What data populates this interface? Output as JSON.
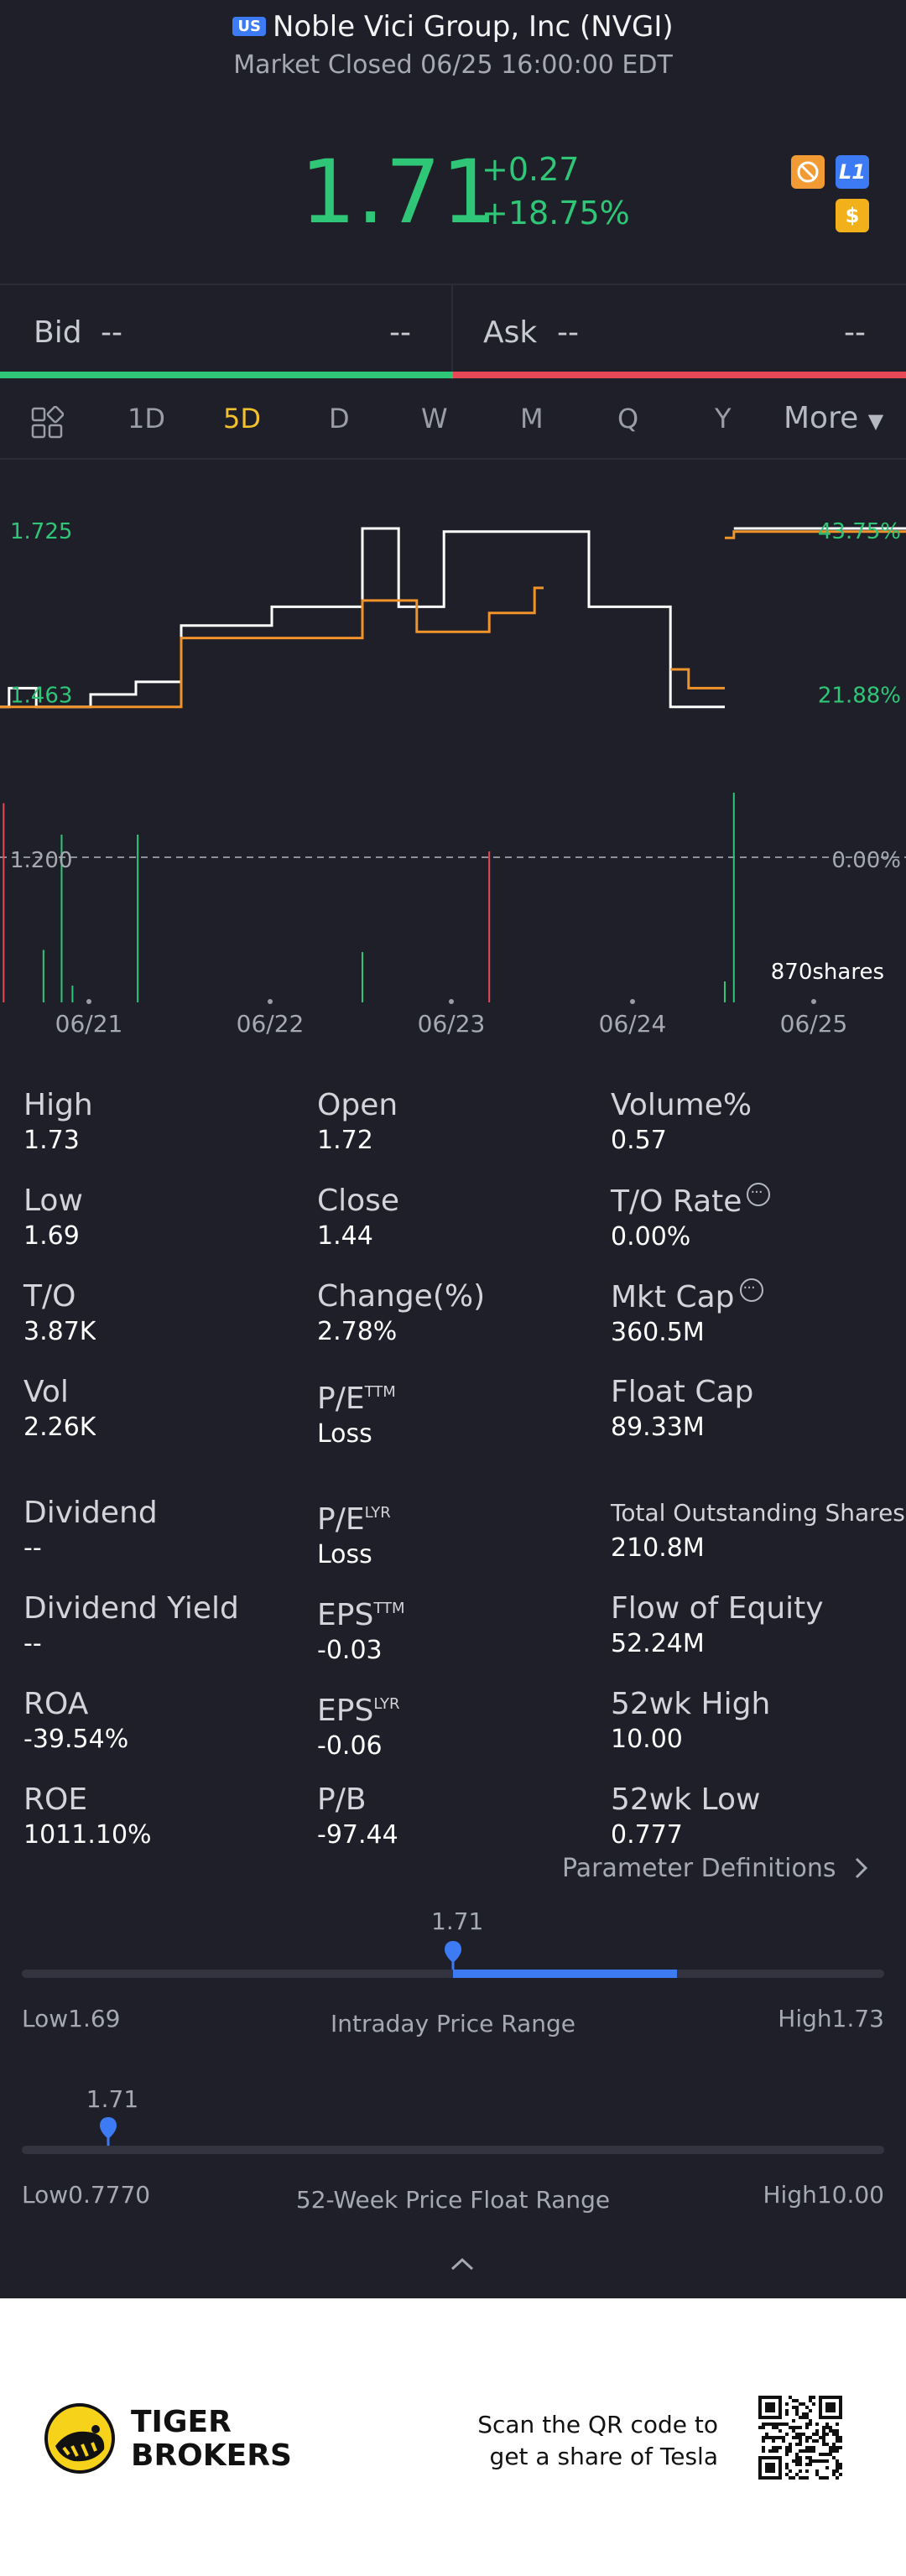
{
  "header": {
    "market_badge": "US",
    "title": "Noble Vici Group, Inc (NVGI)",
    "status": "Market Closed 06/25 16:00:00 EDT"
  },
  "quote": {
    "price": "1.71",
    "change": "+0.27",
    "change_pct": "+18.75%",
    "badges": [
      {
        "icon": "no-trade-icon",
        "text": ""
      },
      {
        "icon": "level1-icon",
        "text": "L1"
      },
      {
        "icon": "dollar-icon",
        "text": "$"
      }
    ]
  },
  "bidask": {
    "bid_label": "Bid",
    "bid_price": "--",
    "bid_size": "--",
    "ask_label": "Ask",
    "ask_price": "--",
    "ask_size": "--"
  },
  "tabs": {
    "items": [
      "1D",
      "5D",
      "D",
      "W",
      "M",
      "Q",
      "Y"
    ],
    "active": "5D",
    "more": "More"
  },
  "chart_data": {
    "type": "line",
    "x_labels": [
      "06/21",
      "06/22",
      "06/23",
      "06/24",
      "06/25"
    ],
    "y_left_labels": [
      "1.725",
      "1.463",
      "1.200"
    ],
    "y_right_labels": [
      "43.75%",
      "21.88%",
      "0.00%"
    ],
    "ylim": [
      1.2,
      1.725
    ],
    "volume_label": "870shares",
    "series": [
      {
        "color": "#ffffff",
        "points": [
          [
            0,
            1.44
          ],
          [
            0.05,
            1.44
          ],
          [
            0.05,
            1.47
          ],
          [
            0.2,
            1.47
          ],
          [
            0.2,
            1.44
          ],
          [
            0.5,
            1.44
          ],
          [
            0.5,
            1.46
          ],
          [
            0.75,
            1.46
          ],
          [
            0.75,
            1.48
          ],
          [
            1.0,
            1.48
          ],
          [
            1.0,
            1.57
          ],
          [
            1.5,
            1.57
          ],
          [
            1.5,
            1.6
          ],
          [
            2.0,
            1.6
          ],
          [
            2.0,
            1.725
          ],
          [
            2.2,
            1.725
          ],
          [
            2.2,
            1.6
          ],
          [
            2.45,
            1.6
          ],
          [
            2.45,
            1.72
          ],
          [
            2.95,
            1.72
          ],
          [
            2.95,
            1.72
          ],
          [
            3.25,
            1.72
          ],
          [
            3.25,
            1.6
          ],
          [
            3.7,
            1.6
          ],
          [
            3.7,
            1.44
          ],
          [
            4.0,
            1.44
          ]
        ]
      },
      {
        "color": "#f0932b",
        "points": [
          [
            0,
            1.44
          ],
          [
            0.05,
            1.44
          ],
          [
            0.5,
            1.44
          ],
          [
            1.0,
            1.44
          ],
          [
            1.0,
            1.55
          ],
          [
            1.5,
            1.55
          ],
          [
            2.0,
            1.55
          ],
          [
            2.0,
            1.61
          ],
          [
            2.3,
            1.61
          ],
          [
            2.3,
            1.56
          ],
          [
            2.7,
            1.56
          ],
          [
            2.7,
            1.59
          ],
          [
            2.95,
            1.59
          ],
          [
            2.95,
            1.63
          ],
          [
            3.0,
            1.63
          ]
        ]
      },
      {
        "color": "#f0932b",
        "points": [
          [
            3.7,
            1.5
          ],
          [
            3.8,
            1.5
          ],
          [
            3.8,
            1.47
          ],
          [
            4.0,
            1.47
          ]
        ]
      },
      {
        "color": "#f0932b",
        "points": [
          [
            4.0,
            1.71
          ],
          [
            4.05,
            1.71
          ],
          [
            4.05,
            1.72
          ],
          [
            5.0,
            1.72
          ]
        ]
      },
      {
        "color": "#ffffff",
        "points": [
          [
            4.05,
            1.725
          ],
          [
            5.0,
            1.725
          ]
        ]
      }
    ],
    "volume_bars": [
      {
        "x": 0.02,
        "h": 0.95,
        "color": "#e84855"
      },
      {
        "x": 0.24,
        "h": 0.25,
        "color": "#2fc777"
      },
      {
        "x": 0.34,
        "h": 0.8,
        "color": "#2fc777"
      },
      {
        "x": 0.4,
        "h": 0.08,
        "color": "#2fc777"
      },
      {
        "x": 0.76,
        "h": 0.8,
        "color": "#2fc777"
      },
      {
        "x": 2.0,
        "h": 0.24,
        "color": "#2fc777"
      },
      {
        "x": 2.7,
        "h": 0.72,
        "color": "#e84855"
      },
      {
        "x": 4.0,
        "h": 0.1,
        "color": "#2fc777"
      },
      {
        "x": 4.05,
        "h": 1.0,
        "color": "#2fc777"
      }
    ]
  },
  "stats": [
    {
      "label": "High",
      "value": "1.73"
    },
    {
      "label": "Open",
      "value": "1.72"
    },
    {
      "label": "Volume%",
      "value": "0.57"
    },
    {
      "label": "Low",
      "value": "1.69"
    },
    {
      "label": "Close",
      "value": "1.44"
    },
    {
      "label": "T/O Rate",
      "value": "0.00%"
    },
    {
      "label": "T/O",
      "value": "3.87K"
    },
    {
      "label": "Change(%)",
      "value": "2.78%"
    },
    {
      "label": "Mkt Cap",
      "value": "360.5M"
    },
    {
      "label": "Vol",
      "value": "2.26K"
    },
    {
      "label": "P/E",
      "sup": "TTM",
      "value": "Loss"
    },
    {
      "label": "Float Cap",
      "value": "89.33M"
    },
    {
      "label": "Dividend",
      "value": "--"
    },
    {
      "label": "P/E",
      "sup": "LYR",
      "value": "Loss"
    },
    {
      "label": "Total Outstanding Shares",
      "value": "210.8M"
    },
    {
      "label": "Dividend Yield",
      "value": "--"
    },
    {
      "label": "EPS",
      "sup": "TTM",
      "value": "-0.03"
    },
    {
      "label": "Flow of Equity",
      "value": "52.24M"
    },
    {
      "label": "ROA",
      "value": "-39.54%"
    },
    {
      "label": "EPS",
      "sup": "LYR",
      "value": "-0.06"
    },
    {
      "label": "52wk High",
      "value": "10.00"
    },
    {
      "label": "ROE",
      "value": "1011.10%"
    },
    {
      "label": "P/B",
      "value": "-97.44"
    },
    {
      "label": "52wk Low",
      "value": "0.777"
    }
  ],
  "param_def": "Parameter Definitions",
  "intraday": {
    "current": "1.71",
    "low": "Low1.69",
    "high": "High1.73",
    "title": "Intraday Price Range",
    "position_fraction": 0.5,
    "fill_from": 0.5,
    "fill_to": 0.76
  },
  "week52": {
    "current": "1.71",
    "low": "Low0.7770",
    "high": "High10.00",
    "title": "52-Week Price Float Range",
    "position_fraction": 0.1
  },
  "footer": {
    "brand_line1": "TIGER",
    "brand_line2": "BROKERS",
    "scan_line1": "Scan the QR code to",
    "scan_line2": "get a share of Tesla"
  }
}
